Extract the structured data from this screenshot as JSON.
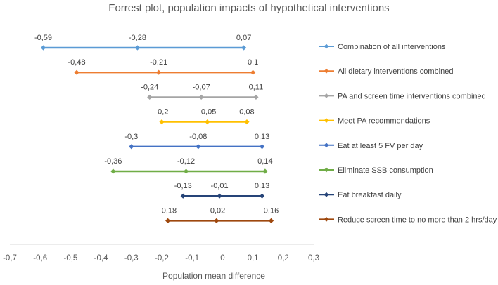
{
  "chart_data": {
    "type": "forest",
    "title": "Forrest plot, population impacts of hypothetical interventions",
    "xlabel": "Population mean difference",
    "xlim": [
      -0.7,
      0.3
    ],
    "xticks": [
      -0.7,
      -0.6,
      -0.5,
      -0.4,
      -0.3,
      -0.2,
      -0.1,
      0,
      0.1,
      0.2,
      0.3
    ],
    "xtick_labels": [
      "-0,7",
      "-0,6",
      "-0,5",
      "-0,4",
      "-0,3",
      "-0,2",
      "-0,1",
      "0",
      "0,1",
      "0,2",
      "0,3"
    ],
    "legend_position": "right",
    "series": [
      {
        "name": "Combination of all interventions",
        "color": "#5B9BD5",
        "marker": "circle",
        "lower": -0.59,
        "estimate": -0.28,
        "upper": 0.07,
        "labels": [
          "-0,59",
          "-0,28",
          "0,07"
        ]
      },
      {
        "name": "All dietary interventions combined",
        "color": "#ED7D31",
        "marker": "circle",
        "lower": -0.48,
        "estimate": -0.21,
        "upper": 0.1,
        "labels": [
          "-0,48",
          "-0,21",
          "0,1"
        ]
      },
      {
        "name": "PA and screen time interventions combined",
        "color": "#A5A5A5",
        "marker": "circle",
        "lower": -0.24,
        "estimate": -0.07,
        "upper": 0.11,
        "labels": [
          "-0,24",
          "-0,07",
          "0,11"
        ]
      },
      {
        "name": "Meet PA recommendations",
        "color": "#FFC000",
        "marker": "circle",
        "lower": -0.2,
        "estimate": -0.05,
        "upper": 0.08,
        "labels": [
          "-0,2",
          "-0,05",
          "0,08"
        ]
      },
      {
        "name": "Eat at least 5 FV per day",
        "color": "#4472C4",
        "marker": "circle",
        "lower": -0.3,
        "estimate": -0.08,
        "upper": 0.13,
        "labels": [
          "-0,3",
          "-0,08",
          "0,13"
        ]
      },
      {
        "name": "Eliminate SSB consumption",
        "color": "#70AD47",
        "marker": "circle",
        "lower": -0.36,
        "estimate": -0.12,
        "upper": 0.14,
        "labels": [
          "-0,36",
          "-0,12",
          "0,14"
        ]
      },
      {
        "name": "Eat breakfast daily",
        "color": "#264478",
        "marker": "circle",
        "lower": -0.13,
        "estimate": -0.01,
        "upper": 0.13,
        "labels": [
          "-0,13",
          "-0,01",
          "0,13"
        ]
      },
      {
        "name": "Reduce screen time to no more than 2 hrs/day",
        "color": "#9E480E",
        "marker": "circle",
        "lower": -0.18,
        "estimate": -0.02,
        "upper": 0.16,
        "labels": [
          "-0,18",
          "-0,02",
          "0,16"
        ]
      }
    ]
  }
}
